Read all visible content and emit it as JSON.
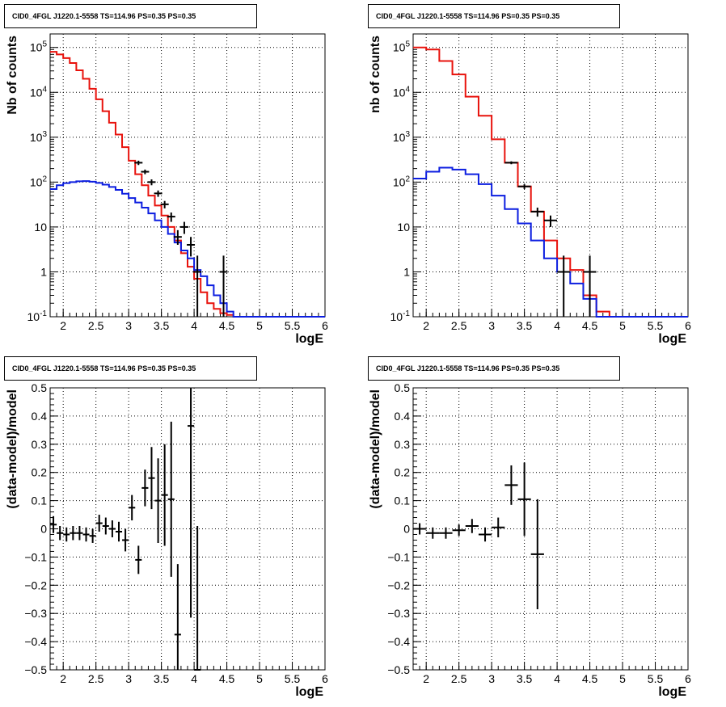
{
  "chart_data": [
    {
      "type": "line",
      "title": "CID0_4FGL J1220.1-5558 TS=114.96 PS=0.35 PS=0.35",
      "xlabel": "logE",
      "ylabel": "Nb of counts",
      "xlim": [
        1.8,
        6.0
      ],
      "ylim": [
        0.1,
        200000
      ],
      "yscale": "log",
      "grid": true,
      "x_ticks": [
        "2",
        "2.5",
        "3",
        "3.5",
        "4",
        "4.5",
        "5",
        "5.5",
        "6"
      ],
      "y_ticks": [
        "10^-1",
        "1",
        "10",
        "10^2",
        "10^3",
        "10^4",
        "10^5"
      ],
      "bin_edges": [
        1.8,
        1.9,
        2.0,
        2.1,
        2.2,
        2.3,
        2.4,
        2.5,
        2.6,
        2.7,
        2.8,
        2.9,
        3.0,
        3.1,
        3.2,
        3.3,
        3.4,
        3.5,
        3.6,
        3.7,
        3.8,
        3.9,
        4.0,
        4.1,
        4.2,
        4.3,
        4.4,
        4.5,
        4.6,
        4.7,
        4.8,
        4.9,
        5.0,
        5.1,
        5.2,
        5.3,
        5.4,
        5.5,
        5.6,
        5.7,
        5.8,
        5.9,
        6.0
      ],
      "series": [
        {
          "values": [
            80000,
            70000,
            58000,
            45000,
            31000,
            20000,
            12000,
            7000,
            3800,
            2100,
            1150,
            600,
            300,
            150,
            85,
            50,
            30,
            18,
            10,
            5,
            2.6,
            1.3,
            0.7,
            0.35,
            0.2,
            0.15,
            0.12,
            0.11,
            0.1,
            0.1,
            0.1,
            0.1,
            0.1,
            0.1,
            0.1,
            0.1,
            0.1,
            0.1,
            0.1,
            0.1,
            0.1,
            0.1
          ],
          "color": "#e8120c"
        },
        {
          "values": [
            70,
            85,
            95,
            100,
            104,
            105,
            102,
            96,
            88,
            78,
            67,
            55,
            44,
            35,
            27,
            20,
            14,
            10,
            7,
            4.5,
            3,
            2,
            1.1,
            0.8,
            0.5,
            0.3,
            0.2,
            0.13,
            0.1,
            0.1,
            0.1,
            0.1,
            0.1,
            0.1,
            0.1,
            0.1,
            0.1,
            0.1,
            0.1,
            0.1,
            0.1,
            0.1
          ],
          "color": "#0c1ee0"
        }
      ],
      "data_points": [
        {
          "x": 3.15,
          "y": 270,
          "ylo": 240,
          "yhi": 300
        },
        {
          "x": 3.25,
          "y": 170,
          "ylo": 150,
          "yhi": 190
        },
        {
          "x": 3.35,
          "y": 100,
          "ylo": 85,
          "yhi": 115
        },
        {
          "x": 3.45,
          "y": 56,
          "ylo": 47,
          "yhi": 65
        },
        {
          "x": 3.55,
          "y": 32,
          "ylo": 26,
          "yhi": 38
        },
        {
          "x": 3.65,
          "y": 17,
          "ylo": 13,
          "yhi": 21
        },
        {
          "x": 3.75,
          "y": 6,
          "ylo": 4,
          "yhi": 8.5
        },
        {
          "x": 3.85,
          "y": 10,
          "ylo": 7,
          "yhi": 13
        },
        {
          "x": 3.95,
          "y": 4,
          "ylo": 2.2,
          "yhi": 6
        },
        {
          "x": 4.05,
          "y": 1,
          "ylo": 0.1,
          "yhi": 2.3
        },
        {
          "x": 4.45,
          "y": 1,
          "ylo": 0.1,
          "yhi": 2.3
        }
      ]
    },
    {
      "type": "line",
      "title": "CID0_4FGL J1220.1-5558 TS=114.96 PS=0.35 PS=0.35",
      "xlabel": "logE",
      "ylabel": "nb of counts",
      "xlim": [
        1.8,
        6.0
      ],
      "ylim": [
        0.1,
        200000
      ],
      "yscale": "log",
      "grid": true,
      "x_ticks": [
        "2",
        "2.5",
        "3",
        "3.5",
        "4",
        "4.5",
        "5",
        "5.5",
        "6"
      ],
      "y_ticks": [
        "10^-1",
        "1",
        "10",
        "10^2",
        "10^3",
        "10^4",
        "10^5"
      ],
      "bin_edges": [
        1.8,
        2.0,
        2.2,
        2.4,
        2.6,
        2.8,
        3.0,
        3.2,
        3.4,
        3.6,
        3.8,
        4.0,
        4.2,
        4.4,
        4.6,
        4.8,
        5.0,
        5.2,
        5.4,
        5.6,
        5.8,
        6.0
      ],
      "series": [
        {
          "values": [
            100000,
            90000,
            50000,
            25000,
            8000,
            3000,
            900,
            270,
            80,
            22,
            5,
            2,
            1.1,
            0.3,
            0.13,
            0.1,
            0.1,
            0.1,
            0.1,
            0.1,
            0.1
          ],
          "color": "#e8120c"
        },
        {
          "values": [
            120,
            170,
            210,
            190,
            150,
            90,
            50,
            25,
            12,
            5,
            2,
            1,
            0.55,
            0.25,
            0.1,
            0.1,
            0.1,
            0.1,
            0.1,
            0.1,
            0.1
          ],
          "color": "#0c1ee0"
        }
      ],
      "data_points": [
        {
          "x": 3.3,
          "y": 270,
          "ylo": 250,
          "yhi": 290
        },
        {
          "x": 3.5,
          "y": 80,
          "ylo": 70,
          "yhi": 90
        },
        {
          "x": 3.7,
          "y": 22,
          "ylo": 17,
          "yhi": 27
        },
        {
          "x": 3.9,
          "y": 14,
          "ylo": 10,
          "yhi": 18
        },
        {
          "x": 4.1,
          "y": 1,
          "ylo": 0.1,
          "yhi": 2.3
        },
        {
          "x": 4.5,
          "y": 1,
          "ylo": 0.1,
          "yhi": 2.3
        }
      ]
    },
    {
      "type": "scatter",
      "title": "CID0_4FGL J1220.1-5558 TS=114.96 PS=0.35 PS=0.35",
      "xlabel": "logE",
      "ylabel": "(data-model)/model",
      "xlim": [
        1.8,
        6.0
      ],
      "ylim": [
        -0.5,
        0.5
      ],
      "grid": true,
      "x_ticks": [
        "2",
        "2.5",
        "3",
        "3.5",
        "4",
        "4.5",
        "5",
        "5.5",
        "6"
      ],
      "y_ticks": [
        "−0.5",
        "−0.4",
        "−0.3",
        "−0.2",
        "−0.1",
        "0",
        "0.1",
        "0.2",
        "0.3",
        "0.4",
        "0.5"
      ],
      "points": [
        {
          "x": 1.85,
          "y": 0.015,
          "xerr": 0.05,
          "yerr": 0.03
        },
        {
          "x": 1.95,
          "y": -0.015,
          "xerr": 0.05,
          "yerr": 0.025
        },
        {
          "x": 2.05,
          "y": -0.02,
          "xerr": 0.05,
          "yerr": 0.025
        },
        {
          "x": 2.15,
          "y": -0.015,
          "xerr": 0.05,
          "yerr": 0.025
        },
        {
          "x": 2.25,
          "y": -0.015,
          "xerr": 0.05,
          "yerr": 0.025
        },
        {
          "x": 2.35,
          "y": -0.02,
          "xerr": 0.05,
          "yerr": 0.025
        },
        {
          "x": 2.45,
          "y": -0.025,
          "xerr": 0.05,
          "yerr": 0.025
        },
        {
          "x": 2.55,
          "y": 0.02,
          "xerr": 0.05,
          "yerr": 0.03
        },
        {
          "x": 2.65,
          "y": 0.01,
          "xerr": 0.05,
          "yerr": 0.03
        },
        {
          "x": 2.75,
          "y": 0.0,
          "xerr": 0.05,
          "yerr": 0.03
        },
        {
          "x": 2.85,
          "y": -0.01,
          "xerr": 0.05,
          "yerr": 0.035
        },
        {
          "x": 2.95,
          "y": -0.04,
          "xerr": 0.05,
          "yerr": 0.04
        },
        {
          "x": 3.05,
          "y": 0.075,
          "xerr": 0.05,
          "yerr": 0.045
        },
        {
          "x": 3.15,
          "y": -0.11,
          "xerr": 0.05,
          "yerr": 0.05
        },
        {
          "x": 3.25,
          "y": 0.145,
          "xerr": 0.05,
          "yerr": 0.065
        },
        {
          "x": 3.35,
          "y": 0.18,
          "xerr": 0.05,
          "yerr": 0.11
        },
        {
          "x": 3.45,
          "y": 0.1,
          "xerr": 0.05,
          "yerr": 0.15
        },
        {
          "x": 3.55,
          "y": 0.12,
          "xerr": 0.05,
          "yerr": 0.18
        },
        {
          "x": 3.65,
          "y": 0.105,
          "xerr": 0.05,
          "yerr": 0.275
        },
        {
          "x": 3.75,
          "y": -0.375,
          "xerr": 0.05,
          "yerr": 0.25
        },
        {
          "x": 3.95,
          "y": 0.365,
          "xerr": 0.05,
          "yerr": 0.68
        },
        {
          "x": 4.05,
          "y": -0.5,
          "xerr": 0.05,
          "yerr": 0.51
        }
      ]
    },
    {
      "type": "scatter",
      "title": "CID0_4FGL J1220.1-5558 TS=114.96 PS=0.35 PS=0.35",
      "xlabel": "logE",
      "ylabel": "(data-model)/model",
      "xlim": [
        1.8,
        6.0
      ],
      "ylim": [
        -0.5,
        0.5
      ],
      "grid": true,
      "x_ticks": [
        "2",
        "2.5",
        "3",
        "3.5",
        "4",
        "4.5",
        "5",
        "5.5",
        "6"
      ],
      "y_ticks": [
        "−0.5",
        "−0.4",
        "−0.3",
        "−0.2",
        "−0.1",
        "0",
        "0.1",
        "0.2",
        "0.3",
        "0.4",
        "0.5"
      ],
      "points": [
        {
          "x": 1.9,
          "y": 0.0,
          "xerr": 0.1,
          "yerr": 0.02
        },
        {
          "x": 2.1,
          "y": -0.015,
          "xerr": 0.1,
          "yerr": 0.02
        },
        {
          "x": 2.3,
          "y": -0.015,
          "xerr": 0.1,
          "yerr": 0.02
        },
        {
          "x": 2.5,
          "y": -0.005,
          "xerr": 0.1,
          "yerr": 0.02
        },
        {
          "x": 2.7,
          "y": 0.01,
          "xerr": 0.1,
          "yerr": 0.025
        },
        {
          "x": 2.9,
          "y": -0.02,
          "xerr": 0.1,
          "yerr": 0.025
        },
        {
          "x": 3.1,
          "y": 0.005,
          "xerr": 0.1,
          "yerr": 0.035
        },
        {
          "x": 3.3,
          "y": 0.155,
          "xerr": 0.1,
          "yerr": 0.07
        },
        {
          "x": 3.5,
          "y": 0.105,
          "xerr": 0.1,
          "yerr": 0.13
        },
        {
          "x": 3.7,
          "y": -0.09,
          "xerr": 0.1,
          "yerr": 0.195
        }
      ]
    }
  ]
}
